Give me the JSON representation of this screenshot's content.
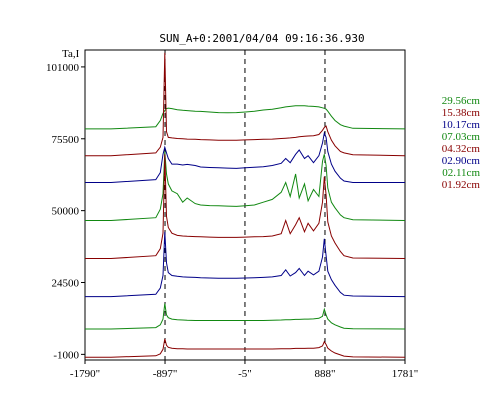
{
  "chart_data": {
    "type": "line",
    "title": "SUN_A+0:2001/04/04 09:16:36.930",
    "ylabel": "Ta,I",
    "xlabel": "",
    "xlim": [
      -1790,
      1781
    ],
    "ylim": [
      -3000,
      107000
    ],
    "x_ticks": [
      "-1790\"",
      "-897\"",
      "-5\"",
      "888\"",
      "1781\""
    ],
    "y_ticks": [
      "101000",
      "75500",
      "50000",
      "24500",
      "-1000"
    ],
    "y_tick_values": [
      101000,
      75500,
      50000,
      24500,
      -1000
    ],
    "x_tick_values": [
      -1790,
      -897,
      -5,
      888,
      1781
    ],
    "vlines": [
      -897,
      -5,
      888
    ],
    "grid": false,
    "legend_position": "right",
    "x": [
      -1790,
      -1500,
      -1000,
      -950,
      -920,
      -900,
      -880,
      -860,
      -820,
      -760,
      -700,
      -650,
      -560,
      -500,
      -400,
      -300,
      -200,
      -100,
      0,
      100,
      200,
      300,
      400,
      450,
      500,
      560,
      600,
      660,
      700,
      760,
      820,
      860,
      880,
      900,
      920,
      960,
      1000,
      1060,
      1100,
      1200,
      1781
    ],
    "series": [
      {
        "name": "29.56cm",
        "color": "#118811",
        "values": [
          79000,
          79000,
          79800,
          82000,
          84500,
          85500,
          86200,
          86400,
          86200,
          85800,
          85600,
          85500,
          85300,
          85200,
          85000,
          84800,
          84700,
          84800,
          85000,
          85300,
          85700,
          86000,
          86500,
          86800,
          87000,
          87200,
          87200,
          87200,
          87100,
          87000,
          86800,
          86500,
          86300,
          86000,
          85300,
          83500,
          82000,
          80500,
          80000,
          79200,
          79000
        ]
      },
      {
        "name": "15.38cm",
        "color": "#880000",
        "values": [
          69500,
          69500,
          70500,
          72500,
          76000,
          106000,
          78000,
          76000,
          75800,
          75600,
          75500,
          75400,
          75300,
          75200,
          75100,
          75000,
          75000,
          75000,
          75100,
          75200,
          75300,
          75400,
          75600,
          75700,
          75800,
          76000,
          76200,
          76400,
          76500,
          76600,
          77000,
          78500,
          79500,
          80000,
          78000,
          75000,
          73000,
          71000,
          70500,
          69800,
          69500
        ]
      },
      {
        "name": "10.17cm",
        "color": "#000088",
        "values": [
          60000,
          60000,
          61000,
          63500,
          70000,
          72500,
          70500,
          68500,
          66500,
          66500,
          66200,
          66400,
          66000,
          65500,
          65300,
          65200,
          65100,
          65000,
          65200,
          65400,
          65600,
          66000,
          66800,
          68500,
          67000,
          70000,
          71500,
          68500,
          69500,
          67000,
          69500,
          74000,
          77500,
          76000,
          71000,
          66500,
          64000,
          61500,
          60500,
          60000,
          60000
        ]
      },
      {
        "name": "07.03cm",
        "color": "#118811",
        "values": [
          46500,
          46500,
          47500,
          50500,
          56000,
          71000,
          63000,
          59500,
          57000,
          56000,
          53000,
          54500,
          52500,
          52000,
          51800,
          51700,
          51600,
          51500,
          51700,
          52000,
          53000,
          54000,
          56500,
          60000,
          55000,
          63000,
          54500,
          59500,
          53500,
          57500,
          55000,
          67500,
          70000,
          66000,
          58000,
          53000,
          51000,
          48500,
          47500,
          46800,
          46500
        ]
      },
      {
        "name": "04.32cm",
        "color": "#880000",
        "values": [
          33000,
          33000,
          34000,
          36500,
          42000,
          70000,
          48000,
          44000,
          42000,
          41200,
          41000,
          40900,
          40800,
          40700,
          40600,
          40500,
          40500,
          40500,
          40600,
          40700,
          40800,
          41000,
          41800,
          46500,
          41800,
          45000,
          47500,
          42500,
          45500,
          42800,
          45500,
          53000,
          62000,
          55500,
          46000,
          41000,
          38500,
          35500,
          34000,
          33200,
          33000
        ]
      },
      {
        "name": "02.90cm",
        "color": "#000088",
        "values": [
          19500,
          19500,
          20300,
          22500,
          27000,
          42500,
          31500,
          28000,
          27000,
          26700,
          26500,
          26400,
          26300,
          26200,
          26100,
          26000,
          26000,
          26000,
          26100,
          26200,
          26300,
          26500,
          27000,
          29000,
          26800,
          28000,
          29500,
          27000,
          28500,
          27200,
          28500,
          33500,
          40000,
          34000,
          28500,
          25500,
          23500,
          21000,
          20000,
          19700,
          19500
        ]
      },
      {
        "name": "02.11cm",
        "color": "#118811",
        "values": [
          8000,
          8000,
          8500,
          9500,
          11500,
          17000,
          13000,
          12000,
          11500,
          11300,
          11200,
          11100,
          11000,
          11000,
          11000,
          11000,
          11000,
          11000,
          11000,
          11000,
          11000,
          11100,
          11200,
          11300,
          11300,
          11400,
          11400,
          11500,
          11500,
          11600,
          11800,
          12500,
          15000,
          13000,
          11500,
          10200,
          9500,
          8700,
          8300,
          8100,
          8000
        ]
      },
      {
        "name": "01.92cm",
        "color": "#880000",
        "values": [
          -2000,
          -2000,
          -1500,
          -800,
          800,
          4500,
          2200,
          1500,
          1200,
          1000,
          1000,
          900,
          900,
          900,
          900,
          900,
          900,
          900,
          900,
          900,
          900,
          900,
          1000,
          1000,
          1000,
          1100,
          1100,
          1100,
          1200,
          1200,
          1400,
          2000,
          3500,
          2500,
          1200,
          200,
          -500,
          -1200,
          -1600,
          -1900,
          -2000
        ]
      }
    ]
  }
}
